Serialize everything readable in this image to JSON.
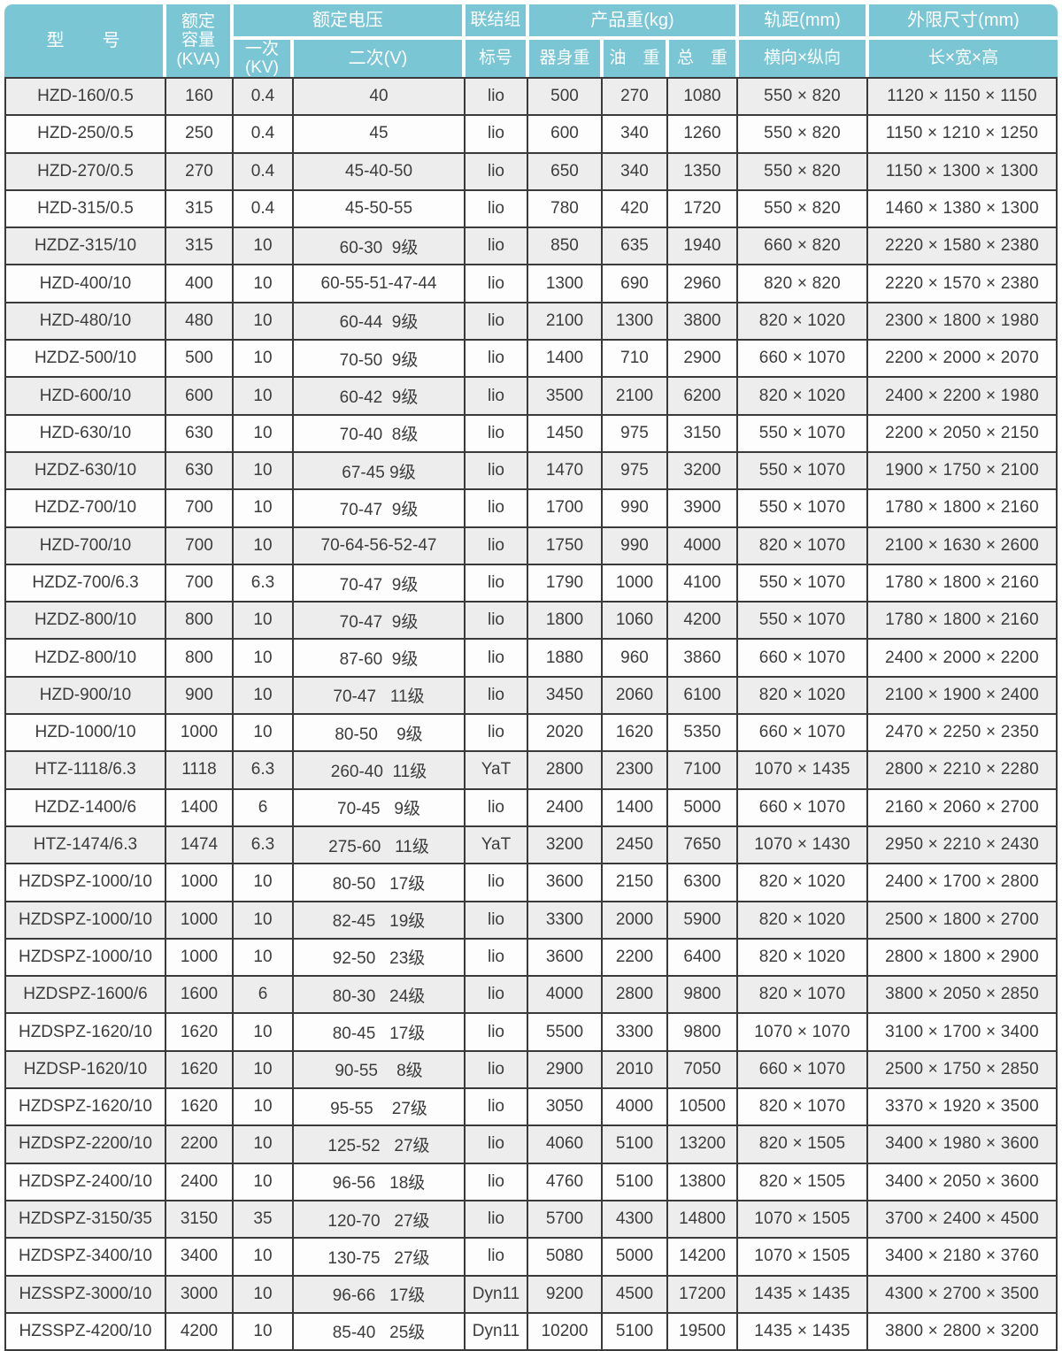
{
  "colors": {
    "header_bg": "#7AC6D5",
    "header_text": "#FFFFFF",
    "row_alt_bg": "#EDEDED",
    "row_bg": "#FDFDFD",
    "border": "#3A3A3A",
    "text": "#3C3C3C"
  },
  "header": {
    "model": "型　　号",
    "capacity": "额定\n容量\n(KVA)",
    "voltage": "额定电压",
    "primary": "一次\n(KV)",
    "secondary": "二次(V)",
    "connection_top": "联结组",
    "connection_bottom": "标号",
    "weight": "产品重(kg)",
    "body_weight": "器身重",
    "oil_weight": "油　重",
    "total_weight": "总　重",
    "gauge_top": "轨距(mm)",
    "gauge_bottom": "横向×纵向",
    "dims_top": "外限尺寸(mm)",
    "dims_bottom": "长×宽×高"
  },
  "rows": [
    {
      "model": "HZD-160/0.5",
      "capacity": "160",
      "primary": "0.4",
      "secondary": "40",
      "connection": "lio",
      "body_weight": "500",
      "oil_weight": "270",
      "total_weight": "1080",
      "gauge": "550 × 820",
      "dimensions": "1120 × 1150 × 1150"
    },
    {
      "model": "HZD-250/0.5",
      "capacity": "250",
      "primary": "0.4",
      "secondary": "45",
      "connection": "lio",
      "body_weight": "600",
      "oil_weight": "340",
      "total_weight": "1260",
      "gauge": "550 × 820",
      "dimensions": "1150 × 1210 × 1250"
    },
    {
      "model": "HZD-270/0.5",
      "capacity": "270",
      "primary": "0.4",
      "secondary": "45-40-50",
      "connection": "lio",
      "body_weight": "650",
      "oil_weight": "340",
      "total_weight": "1350",
      "gauge": "550 × 820",
      "dimensions": "1150 × 1300 × 1300"
    },
    {
      "model": "HZD-315/0.5",
      "capacity": "315",
      "primary": "0.4",
      "secondary": "45-50-55",
      "connection": "lio",
      "body_weight": "780",
      "oil_weight": "420",
      "total_weight": "1720",
      "gauge": "550 × 820",
      "dimensions": "1460 × 1380 × 1300"
    },
    {
      "model": "HZDZ-315/10",
      "capacity": "315",
      "primary": "10",
      "secondary": "60-30  9级",
      "connection": "lio",
      "body_weight": "850",
      "oil_weight": "635",
      "total_weight": "1940",
      "gauge": "660 × 820",
      "dimensions": "2220 × 1580 × 2380"
    },
    {
      "model": "HZD-400/10",
      "capacity": "400",
      "primary": "10",
      "secondary": "60-55-51-47-44",
      "connection": "lio",
      "body_weight": "1300",
      "oil_weight": "690",
      "total_weight": "2960",
      "gauge": "820 × 820",
      "dimensions": "2220 × 1570 × 2380"
    },
    {
      "model": "HZD-480/10",
      "capacity": "480",
      "primary": "10",
      "secondary": "60-44  9级",
      "connection": "lio",
      "body_weight": "2100",
      "oil_weight": "1300",
      "total_weight": "3800",
      "gauge": "820 × 1020",
      "dimensions": "2300 × 1800 × 1980"
    },
    {
      "model": "HZDZ-500/10",
      "capacity": "500",
      "primary": "10",
      "secondary": "70-50  9级",
      "connection": "lio",
      "body_weight": "1400",
      "oil_weight": "710",
      "total_weight": "2900",
      "gauge": "660 × 1070",
      "dimensions": "2200 × 2000 × 2070"
    },
    {
      "model": "HZD-600/10",
      "capacity": "600",
      "primary": "10",
      "secondary": "60-42  9级",
      "connection": "lio",
      "body_weight": "3500",
      "oil_weight": "2100",
      "total_weight": "6200",
      "gauge": "820 × 1020",
      "dimensions": "2400 × 2200 × 1980"
    },
    {
      "model": "HZD-630/10",
      "capacity": "630",
      "primary": "10",
      "secondary": "70-40  8级",
      "connection": "lio",
      "body_weight": "1450",
      "oil_weight": "975",
      "total_weight": "3150",
      "gauge": "550 × 1070",
      "dimensions": "2200 × 2050 × 2150"
    },
    {
      "model": "HZDZ-630/10",
      "capacity": "630",
      "primary": "10",
      "secondary": "67-45 9级",
      "connection": "lio",
      "body_weight": "1470",
      "oil_weight": "975",
      "total_weight": "3200",
      "gauge": "550 × 1070",
      "dimensions": "1900 × 1750 × 2100"
    },
    {
      "model": "HZDZ-700/10",
      "capacity": "700",
      "primary": "10",
      "secondary": "70-47  9级",
      "connection": "lio",
      "body_weight": "1700",
      "oil_weight": "990",
      "total_weight": "3900",
      "gauge": "550 × 1070",
      "dimensions": "1780 × 1800 × 2160"
    },
    {
      "model": "HZD-700/10",
      "capacity": "700",
      "primary": "10",
      "secondary": "70-64-56-52-47",
      "connection": "lio",
      "body_weight": "1750",
      "oil_weight": "990",
      "total_weight": "4000",
      "gauge": "820 × 1070",
      "dimensions": "2100 × 1630 × 2600"
    },
    {
      "model": "HZDZ-700/6.3",
      "capacity": "700",
      "primary": "6.3",
      "secondary": "70-47  9级",
      "connection": "lio",
      "body_weight": "1790",
      "oil_weight": "1000",
      "total_weight": "4100",
      "gauge": "550 × 1070",
      "dimensions": "1780 × 1800 × 2160"
    },
    {
      "model": "HZDZ-800/10",
      "capacity": "800",
      "primary": "10",
      "secondary": "70-47  9级",
      "connection": "lio",
      "body_weight": "1800",
      "oil_weight": "1060",
      "total_weight": "4200",
      "gauge": "550 × 1070",
      "dimensions": "1780 × 1800 × 2160"
    },
    {
      "model": "HZDZ-800/10",
      "capacity": "800",
      "primary": "10",
      "secondary": "87-60  9级",
      "connection": "lio",
      "body_weight": "1880",
      "oil_weight": "960",
      "total_weight": "3860",
      "gauge": "660 × 1070",
      "dimensions": "2400 × 2000 × 2200"
    },
    {
      "model": "HZD-900/10",
      "capacity": "900",
      "primary": "10",
      "secondary": "70-47   11级",
      "connection": "lio",
      "body_weight": "3450",
      "oil_weight": "2060",
      "total_weight": "6100",
      "gauge": "820 × 1020",
      "dimensions": "2100 × 1900 × 2400"
    },
    {
      "model": "HZD-1000/10",
      "capacity": "1000",
      "primary": "10",
      "secondary": "80-50    9级",
      "connection": "lio",
      "body_weight": "2020",
      "oil_weight": "1620",
      "total_weight": "5350",
      "gauge": "660 × 1070",
      "dimensions": "2470 × 2250 × 2350"
    },
    {
      "model": "HTZ-1118/6.3",
      "capacity": "1118",
      "primary": "6.3",
      "secondary": "260-40  11级",
      "connection": "YaT",
      "body_weight": "2800",
      "oil_weight": "2300",
      "total_weight": "7100",
      "gauge": "1070 × 1435",
      "dimensions": "2800 × 2210 × 2280"
    },
    {
      "model": "HZDZ-1400/6",
      "capacity": "1400",
      "primary": "6",
      "secondary": "70-45   9级",
      "connection": "lio",
      "body_weight": "2400",
      "oil_weight": "1400",
      "total_weight": "5000",
      "gauge": "660 × 1070",
      "dimensions": "2160 × 2060 × 2700"
    },
    {
      "model": "HTZ-1474/6.3",
      "capacity": "1474",
      "primary": "6.3",
      "secondary": "275-60   11级",
      "connection": "YaT",
      "body_weight": "3200",
      "oil_weight": "2450",
      "total_weight": "7650",
      "gauge": "1070 × 1430",
      "dimensions": "2950 × 2210 × 2430"
    },
    {
      "model": "HZDSPZ-1000/10",
      "capacity": "1000",
      "primary": "10",
      "secondary": "80-50   17级",
      "connection": "lio",
      "body_weight": "3600",
      "oil_weight": "2150",
      "total_weight": "6300",
      "gauge": "820 × 1020",
      "dimensions": "2400 × 1700 × 2800"
    },
    {
      "model": "HZDSPZ-1000/10",
      "capacity": "1000",
      "primary": "10",
      "secondary": "82-45   19级",
      "connection": "lio",
      "body_weight": "3300",
      "oil_weight": "2000",
      "total_weight": "5900",
      "gauge": "820 × 1020",
      "dimensions": "2500 × 1800 × 2700"
    },
    {
      "model": "HZDSPZ-1000/10",
      "capacity": "1000",
      "primary": "10",
      "secondary": "92-50   23级",
      "connection": "lio",
      "body_weight": "3600",
      "oil_weight": "2200",
      "total_weight": "6400",
      "gauge": "820 × 1020",
      "dimensions": "2800 × 1800 × 2900"
    },
    {
      "model": "HZDSPZ-1600/6",
      "capacity": "1600",
      "primary": "6",
      "secondary": "80-30   24级",
      "connection": "lio",
      "body_weight": "4000",
      "oil_weight": "2800",
      "total_weight": "9800",
      "gauge": "820 × 1070",
      "dimensions": "3800 × 2050 × 2850"
    },
    {
      "model": "HZDSPZ-1620/10",
      "capacity": "1620",
      "primary": "10",
      "secondary": "80-45   17级",
      "connection": "lio",
      "body_weight": "5500",
      "oil_weight": "3300",
      "total_weight": "9800",
      "gauge": "1070 × 1070",
      "dimensions": "3100 × 1700 × 3400"
    },
    {
      "model": "HZDSP-1620/10",
      "capacity": "1620",
      "primary": "10",
      "secondary": "90-55    8级",
      "connection": "lio",
      "body_weight": "2900",
      "oil_weight": "2010",
      "total_weight": "7050",
      "gauge": "660 × 1070",
      "dimensions": "2500 × 1750 × 2850"
    },
    {
      "model": "HZDSPZ-1620/10",
      "capacity": "1620",
      "primary": "10",
      "secondary": "95-55    27级",
      "connection": "lio",
      "body_weight": "3050",
      "oil_weight": "4000",
      "total_weight": "10500",
      "gauge": "820 × 1070",
      "dimensions": "3370 × 1920 × 3500"
    },
    {
      "model": "HZDSPZ-2200/10",
      "capacity": "2200",
      "primary": "10",
      "secondary": "125-52   27级",
      "connection": "lio",
      "body_weight": "4060",
      "oil_weight": "5100",
      "total_weight": "13200",
      "gauge": "820 × 1505",
      "dimensions": "3400 × 1980 × 3600"
    },
    {
      "model": "HZDSPZ-2400/10",
      "capacity": "2400",
      "primary": "10",
      "secondary": "96-56   18级",
      "connection": "lio",
      "body_weight": "4760",
      "oil_weight": "5100",
      "total_weight": "13800",
      "gauge": "820 × 1505",
      "dimensions": "3400 × 2050 × 3600"
    },
    {
      "model": "HZDSPZ-3150/35",
      "capacity": "3150",
      "primary": "35",
      "secondary": "120-70   27级",
      "connection": "lio",
      "body_weight": "5700",
      "oil_weight": "4300",
      "total_weight": "14800",
      "gauge": "1070 × 1505",
      "dimensions": "3700 × 2400 × 4500"
    },
    {
      "model": "HZDSPZ-3400/10",
      "capacity": "3400",
      "primary": "10",
      "secondary": "130-75   27级",
      "connection": "lio",
      "body_weight": "5080",
      "oil_weight": "5000",
      "total_weight": "14200",
      "gauge": "1070 × 1505",
      "dimensions": "3400 × 2180 × 3760"
    },
    {
      "model": "HZSSPZ-3000/10",
      "capacity": "3000",
      "primary": "10",
      "secondary": "96-66   17级",
      "connection": "Dyn11",
      "body_weight": "9200",
      "oil_weight": "4500",
      "total_weight": "17200",
      "gauge": "1435 × 1435",
      "dimensions": "4300 × 2700 × 3500"
    },
    {
      "model": "HZSSPZ-4200/10",
      "capacity": "4200",
      "primary": "10",
      "secondary": "85-40   25级",
      "connection": "Dyn11",
      "body_weight": "10200",
      "oil_weight": "5100",
      "total_weight": "19500",
      "gauge": "1435 × 1435",
      "dimensions": "3800 × 2800 × 3200"
    }
  ]
}
